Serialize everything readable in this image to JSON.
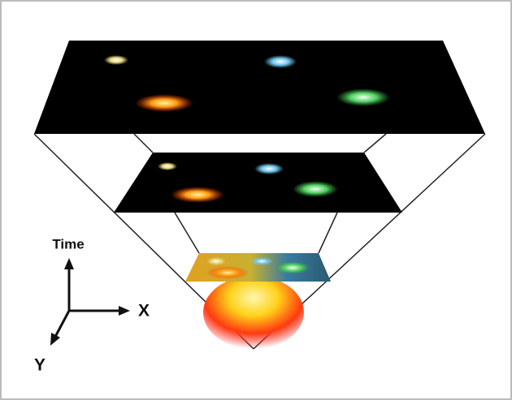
{
  "axes": {
    "time": "Time",
    "x": "X",
    "y": "Y"
  }
}
